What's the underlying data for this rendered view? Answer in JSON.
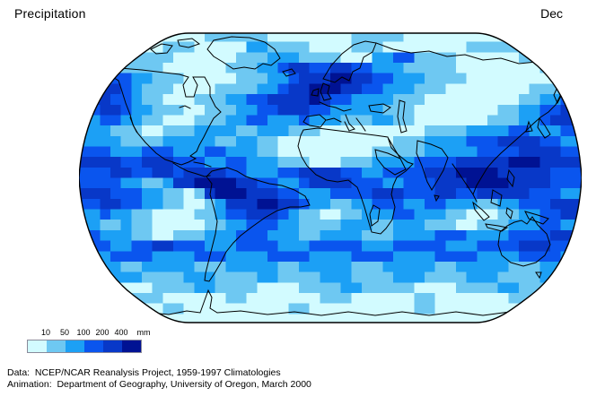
{
  "header": {
    "title": "Precipitation",
    "month": "Dec"
  },
  "legend": {
    "tick_labels": [
      "10",
      "50",
      "100",
      "200",
      "400"
    ],
    "unit": "mm",
    "colors": [
      "#D2FBFF",
      "#6EC8F2",
      "#1CA0F5",
      "#0A55EE",
      "#0838C8",
      "#001293"
    ],
    "classes_mm": [
      "<10",
      "10-50",
      "50-100",
      "100-200",
      "200-400",
      ">400"
    ]
  },
  "credits": {
    "line1": "Data:  NCEP/NCAR Reanalysis Project, 1959-1997 Climatologies",
    "line2": "Animation:  Department of Geography, University of Oregon, March 2000"
  },
  "map": {
    "projection": "robinson-like ellipse, pixelated precipitation raster",
    "grid_cols": 48,
    "grid_rows": 28,
    "grid_rle": [
      "1:3,0:9,1:6,0:8,1:5,0:10,1:4,0:3",
      "1:2,0:6,1:3,0:5,2:2,1:4,0:4,1:3,0:8,1:5,0:6",
      "0:4,1:5,0:6,1:3,2:3,1:4,0:3,2:2,3:2,1:4,0:6,1:4,0:2",
      "2:4,1:4,0:6,1:3,2:2,3:1,4:2,3:2,4:2,3:2,2:3,1:5,0:8,1:4",
      "4:3,3:2,2:2,1:3,0:5,1:3,2:2,3:1,4:3,5:2,4:2,3:2,2:3,1:4,0:9,1:2",
      "5:2,4:2,3:1,2:1,1:3,0:4,1:4,2:2,3:1,4:2,5:3,4:2,3:2,2:3,1:3,0:8,1:3,2:2",
      "4:3,3:2,2:1,1:2,0:3,1:3,2:2,3:2,4:4,5:1,4:1,3:2,2:4,1:3,0:9,1:2,2:2,3:2",
      "3:2,4:2,3:1,2:2,1:3,0:2,1:3,2:2,3:2,4:3,3:2,2:5,1:3,0:8,1:2,2:2,3:2,4:2",
      "2:2,3:2,2:2,1:2,0:3,1:3,2:2,3:2,2:3,3:1,2:3,1:3,2:2,1:2,0:7,1:3,2:2,3:1,4:3",
      "2:3,1:3,0:2,1:3,2:4,1:2,2:3,1:3,0:10,1:4,2:4,3:2,2:3,3:2",
      "2:4,1:4,2:5,1:2,2:2,1:2,0:11,1:3,2:4,3:3,4:4,3:2,2:2",
      "3:3,2:3,3:3,2:3,3:2,2:3,1:2,0:9,1:5,2:5,3:4,4:4,3:2",
      "4:4,3:2,4:3,3:3,2:2,3:2,2:3,1:3,0:3,1:3,2:4,3:4,4:5,5:3,4:4",
      "3:3,4:2,3:2,4:2,3:1,4:4,3:2,2:3,3:2,4:4,3:2,2:2,3:4,4:3,5:4,4:5,3:3",
      "3:4,2:2,1:2,2:1,4:2,5:4,4:2,3:2,2:2,3:1,4:4,3:3,2:2,3:3,4:3,5:4,4:4,3:3",
      "4:3,3:3,2:2,1:2,0:1,1:1,4:1,5:3,4:3,3:2,2:3,3:4,4:3,3:3,4:2,3:2,4:5,3:3,2:2",
      "3:2,4:2,3:2,2:2,1:2,0:2,1:1,2:1,4:3,5:2,4:2,3:1,2:2,1:2,2:2,3:3,2:2,3:2,2:3,1:2,2:2,3:3,4:3",
      "2:2,3:1,2:2,1:2,0:4,1:2,2:1,3:2,4:3,3:1,2:1,1:2,0:2,1:2,2:3,3:2,2:3,1:2,0:3,1:2,2:2,3:2,4:2",
      "2:2,1:2,2:1,1:2,0:5,1:2,2:2,3:3,2:2,1:4,2:3,1:2,2:3,1:3,0:2,1:3,2:3,3:2,2:2",
      "3:2,2:3,1:2,0:2,1:3,2:3,3:3,2:3,1:2,2:4,1:3,2:4,3:3,2:4,3:4,4:2,3:1",
      "3:3,2:2,3:2,4:2,3:3,2:3,3:4,2:3,3:5,2:3,3:5,2:3,3:4,4:3,3:3",
      "2:3,3:4,2:4,3:3,2:4,3:4,2:4,3:4,2:4,3:4,2:4,3:4,2:2",
      "2:4,1:2,2:5,1:3,2:5,1:2,2:5,1:3,2:5,1:2,2:5,1:3,2:4",
      "1:3,2:3,1:4,2:3,1:4,2:2,1:4,2:3,1:4,2:3,1:4,2:3,1:4,2:4",
      "1:4,0:3,1:4,2:2,1:4,0:4,1:4,2:2,1:5,0:4,1:4,2:2,1:6",
      "0:5,1:3,0:6,1:2,0:7,1:3,0:6,1:2,0:7,1:3,0:4",
      "0:8,1:2,0:10,1:2,0:10,1:2,0:8,1:2,0:4",
      "0:48"
    ]
  }
}
